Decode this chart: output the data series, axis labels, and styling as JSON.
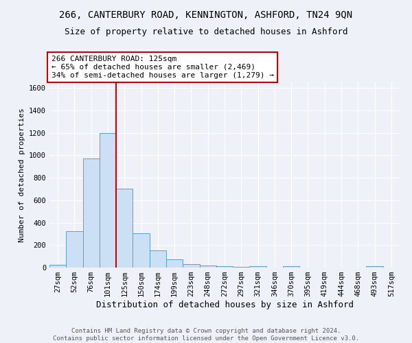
{
  "title": "266, CANTERBURY ROAD, KENNINGTON, ASHFORD, TN24 9QN",
  "subtitle": "Size of property relative to detached houses in Ashford",
  "xlabel": "Distribution of detached houses by size in Ashford",
  "ylabel": "Number of detached properties",
  "bar_labels": [
    "27sqm",
    "52sqm",
    "76sqm",
    "101sqm",
    "125sqm",
    "150sqm",
    "174sqm",
    "199sqm",
    "223sqm",
    "248sqm",
    "272sqm",
    "297sqm",
    "321sqm",
    "346sqm",
    "370sqm",
    "395sqm",
    "419sqm",
    "444sqm",
    "468sqm",
    "493sqm",
    "517sqm"
  ],
  "bar_values": [
    25,
    325,
    970,
    1200,
    700,
    305,
    155,
    75,
    30,
    20,
    12,
    8,
    10,
    0,
    15,
    0,
    0,
    0,
    0,
    10,
    0
  ],
  "bar_color": "#cce0f5",
  "bar_edge_color": "#5a9fd4",
  "vline_x": 3.5,
  "vline_color": "#cc0000",
  "ylim": [
    0,
    1650
  ],
  "yticks": [
    0,
    200,
    400,
    600,
    800,
    1000,
    1200,
    1400,
    1600
  ],
  "annotation_text": "266 CANTERBURY ROAD: 125sqm\n← 65% of detached houses are smaller (2,469)\n34% of semi-detached houses are larger (1,279) →",
  "annotation_box_color": "#ffffff",
  "annotation_box_edge": "#cc0000",
  "background_color": "#eef2f8",
  "grid_color": "#ffffff",
  "footer_line1": "Contains HM Land Registry data © Crown copyright and database right 2024.",
  "footer_line2": "Contains public sector information licensed under the Open Government Licence v3.0.",
  "title_fontsize": 10,
  "subtitle_fontsize": 9,
  "xlabel_fontsize": 9,
  "ylabel_fontsize": 8,
  "tick_fontsize": 7.5,
  "annotation_fontsize": 8,
  "footer_fontsize": 6.5
}
